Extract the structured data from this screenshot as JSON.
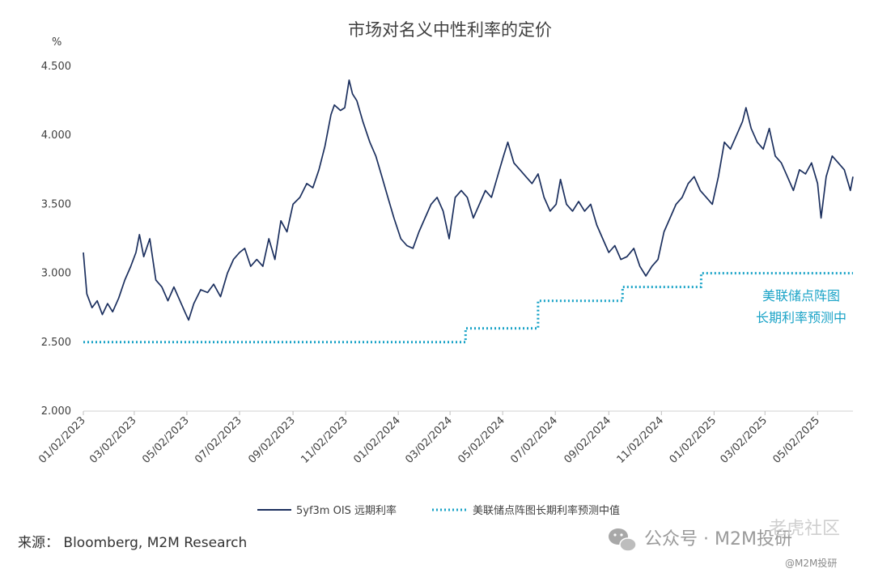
{
  "source": "来源： Bloomberg, M2M Research",
  "watermark": {
    "main": "公众号 · M2M投研",
    "corner": "老虎社区",
    "small": "@M2M投研"
  },
  "chart_data": {
    "type": "line",
    "title": "市场对名义中性利率的定价",
    "ylabel": "%",
    "xlabel": "",
    "ylim": [
      2.0,
      4.5
    ],
    "yticks": [
      "2.000",
      "2.500",
      "3.000",
      "3.500",
      "4.000",
      "4.500"
    ],
    "xticks": [
      "01/02/2023",
      "03/02/2023",
      "05/02/2023",
      "07/02/2023",
      "09/02/2023",
      "11/02/2023",
      "01/02/2024",
      "03/02/2024",
      "05/02/2024",
      "07/02/2024",
      "09/02/2024",
      "11/02/2024",
      "01/02/2025",
      "03/02/2025",
      "05/02/2025"
    ],
    "legend_position": "bottom",
    "grid": false,
    "annotation": [
      "美联储点阵图",
      "长期利率预测中"
    ],
    "series": [
      {
        "name": "5yf3m OIS 远期利率",
        "color": "#1b2f5e",
        "style": "solid",
        "points": [
          [
            "2023-01-02",
            3.15
          ],
          [
            "2023-01-06",
            2.85
          ],
          [
            "2023-01-12",
            2.75
          ],
          [
            "2023-01-18",
            2.8
          ],
          [
            "2023-01-24",
            2.7
          ],
          [
            "2023-01-30",
            2.78
          ],
          [
            "2023-02-05",
            2.72
          ],
          [
            "2023-02-12",
            2.82
          ],
          [
            "2023-02-19",
            2.95
          ],
          [
            "2023-02-26",
            3.05
          ],
          [
            "2023-03-04",
            3.15
          ],
          [
            "2023-03-08",
            3.28
          ],
          [
            "2023-03-13",
            3.12
          ],
          [
            "2023-03-20",
            3.25
          ],
          [
            "2023-03-27",
            2.95
          ],
          [
            "2023-04-03",
            2.9
          ],
          [
            "2023-04-10",
            2.8
          ],
          [
            "2023-04-17",
            2.9
          ],
          [
            "2023-04-24",
            2.8
          ],
          [
            "2023-05-01",
            2.7
          ],
          [
            "2023-05-04",
            2.66
          ],
          [
            "2023-05-10",
            2.78
          ],
          [
            "2023-05-18",
            2.88
          ],
          [
            "2023-05-26",
            2.86
          ],
          [
            "2023-06-02",
            2.92
          ],
          [
            "2023-06-10",
            2.83
          ],
          [
            "2023-06-18",
            3.0
          ],
          [
            "2023-06-25",
            3.1
          ],
          [
            "2023-07-02",
            3.15
          ],
          [
            "2023-07-08",
            3.18
          ],
          [
            "2023-07-15",
            3.05
          ],
          [
            "2023-07-22",
            3.1
          ],
          [
            "2023-07-29",
            3.05
          ],
          [
            "2023-08-05",
            3.25
          ],
          [
            "2023-08-12",
            3.1
          ],
          [
            "2023-08-19",
            3.38
          ],
          [
            "2023-08-26",
            3.3
          ],
          [
            "2023-09-02",
            3.5
          ],
          [
            "2023-09-10",
            3.55
          ],
          [
            "2023-09-18",
            3.65
          ],
          [
            "2023-09-25",
            3.62
          ],
          [
            "2023-10-02",
            3.75
          ],
          [
            "2023-10-09",
            3.92
          ],
          [
            "2023-10-16",
            4.15
          ],
          [
            "2023-10-20",
            4.22
          ],
          [
            "2023-10-27",
            4.18
          ],
          [
            "2023-11-01",
            4.2
          ],
          [
            "2023-11-06",
            4.4
          ],
          [
            "2023-11-10",
            4.3
          ],
          [
            "2023-11-15",
            4.25
          ],
          [
            "2023-11-22",
            4.1
          ],
          [
            "2023-11-30",
            3.95
          ],
          [
            "2023-12-07",
            3.85
          ],
          [
            "2023-12-14",
            3.7
          ],
          [
            "2023-12-21",
            3.55
          ],
          [
            "2023-12-28",
            3.4
          ],
          [
            "2024-01-05",
            3.25
          ],
          [
            "2024-01-12",
            3.2
          ],
          [
            "2024-01-19",
            3.18
          ],
          [
            "2024-01-26",
            3.3
          ],
          [
            "2024-02-02",
            3.4
          ],
          [
            "2024-02-09",
            3.5
          ],
          [
            "2024-02-16",
            3.55
          ],
          [
            "2024-02-23",
            3.45
          ],
          [
            "2024-03-01",
            3.25
          ],
          [
            "2024-03-08",
            3.55
          ],
          [
            "2024-03-15",
            3.6
          ],
          [
            "2024-03-22",
            3.55
          ],
          [
            "2024-03-29",
            3.4
          ],
          [
            "2024-04-05",
            3.5
          ],
          [
            "2024-04-12",
            3.6
          ],
          [
            "2024-04-19",
            3.55
          ],
          [
            "2024-04-26",
            3.7
          ],
          [
            "2024-05-03",
            3.85
          ],
          [
            "2024-05-08",
            3.95
          ],
          [
            "2024-05-15",
            3.8
          ],
          [
            "2024-05-22",
            3.75
          ],
          [
            "2024-05-29",
            3.7
          ],
          [
            "2024-06-05",
            3.65
          ],
          [
            "2024-06-12",
            3.72
          ],
          [
            "2024-06-19",
            3.55
          ],
          [
            "2024-06-26",
            3.45
          ],
          [
            "2024-07-03",
            3.5
          ],
          [
            "2024-07-08",
            3.68
          ],
          [
            "2024-07-15",
            3.5
          ],
          [
            "2024-07-22",
            3.45
          ],
          [
            "2024-07-29",
            3.52
          ],
          [
            "2024-08-05",
            3.45
          ],
          [
            "2024-08-12",
            3.5
          ],
          [
            "2024-08-19",
            3.35
          ],
          [
            "2024-08-26",
            3.25
          ],
          [
            "2024-09-02",
            3.15
          ],
          [
            "2024-09-09",
            3.2
          ],
          [
            "2024-09-16",
            3.1
          ],
          [
            "2024-09-23",
            3.12
          ],
          [
            "2024-10-01",
            3.18
          ],
          [
            "2024-10-08",
            3.05
          ],
          [
            "2024-10-15",
            2.98
          ],
          [
            "2024-10-22",
            3.05
          ],
          [
            "2024-10-29",
            3.1
          ],
          [
            "2024-11-05",
            3.3
          ],
          [
            "2024-11-12",
            3.4
          ],
          [
            "2024-11-19",
            3.5
          ],
          [
            "2024-11-26",
            3.55
          ],
          [
            "2024-12-03",
            3.65
          ],
          [
            "2024-12-10",
            3.7
          ],
          [
            "2024-12-17",
            3.6
          ],
          [
            "2024-12-24",
            3.55
          ],
          [
            "2024-12-31",
            3.5
          ],
          [
            "2025-01-07",
            3.7
          ],
          [
            "2025-01-14",
            3.95
          ],
          [
            "2025-01-21",
            3.9
          ],
          [
            "2025-01-28",
            4.0
          ],
          [
            "2025-02-04",
            4.1
          ],
          [
            "2025-02-08",
            4.2
          ],
          [
            "2025-02-14",
            4.05
          ],
          [
            "2025-02-21",
            3.95
          ],
          [
            "2025-02-28",
            3.9
          ],
          [
            "2025-03-07",
            4.05
          ],
          [
            "2025-03-14",
            3.85
          ],
          [
            "2025-03-21",
            3.8
          ],
          [
            "2025-03-28",
            3.7
          ],
          [
            "2025-04-04",
            3.6
          ],
          [
            "2025-04-11",
            3.75
          ],
          [
            "2025-04-18",
            3.72
          ],
          [
            "2025-04-25",
            3.8
          ],
          [
            "2025-05-02",
            3.65
          ],
          [
            "2025-05-06",
            3.4
          ],
          [
            "2025-05-12",
            3.7
          ],
          [
            "2025-05-19",
            3.85
          ],
          [
            "2025-05-26",
            3.8
          ],
          [
            "2025-06-02",
            3.75
          ],
          [
            "2025-06-09",
            3.6
          ],
          [
            "2025-06-12",
            3.7
          ]
        ]
      },
      {
        "name": "美联储点阵图长期利率预测中值",
        "color": "#1aa3c7",
        "style": "dotted",
        "step": true,
        "points": [
          [
            "2023-01-02",
            2.5
          ],
          [
            "2024-03-20",
            2.5
          ],
          [
            "2024-03-20",
            2.6
          ],
          [
            "2024-06-12",
            2.6
          ],
          [
            "2024-06-12",
            2.8
          ],
          [
            "2024-09-18",
            2.8
          ],
          [
            "2024-09-18",
            2.9
          ],
          [
            "2024-12-18",
            2.9
          ],
          [
            "2024-12-18",
            3.0
          ],
          [
            "2025-06-12",
            3.0
          ]
        ]
      }
    ]
  }
}
